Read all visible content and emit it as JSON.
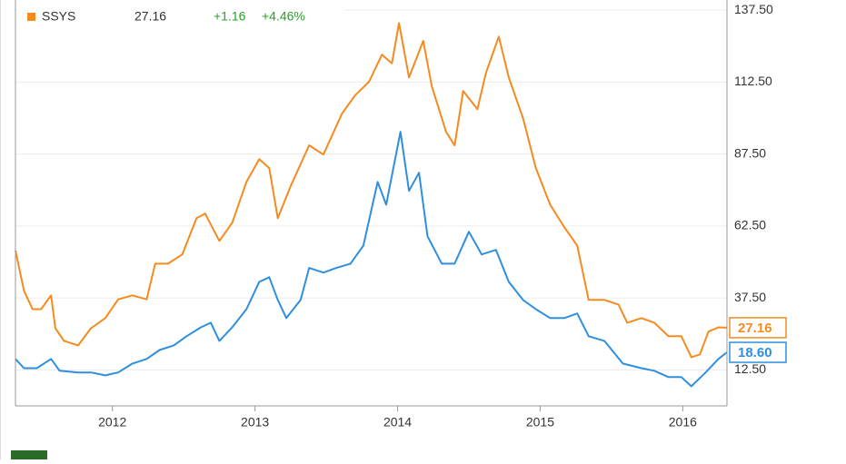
{
  "chart_data": {
    "type": "line",
    "xlim": [
      2011.32,
      2016.31
    ],
    "xticks": [
      2012,
      2013,
      2014,
      2015,
      2016
    ],
    "ylim": [
      0,
      141
    ],
    "yticks": [
      {
        "value": 12.5,
        "label": "12.50"
      },
      {
        "value": 37.5,
        "label": "37.50"
      },
      {
        "value": 62.5,
        "label": "62.50"
      },
      {
        "value": 87.5,
        "label": "87.50"
      },
      {
        "value": 112.5,
        "label": "112.50"
      },
      {
        "value": 137.5,
        "label": "137.50"
      }
    ],
    "grid": true,
    "series": [
      {
        "color": "#2f8fdf",
        "x": [
          2011.32,
          2011.38,
          2011.47,
          2011.57,
          2011.63,
          2011.76,
          2011.85,
          2011.95,
          2012.04,
          2012.14,
          2012.24,
          2012.33,
          2012.43,
          2012.52,
          2012.62,
          2012.69,
          2012.75,
          2012.84,
          2012.94,
          2013.03,
          2013.1,
          2013.16,
          2013.22,
          2013.32,
          2013.38,
          2013.48,
          2013.57,
          2013.67,
          2013.76,
          2013.86,
          2013.92,
          2014.02,
          2014.08,
          2014.15,
          2014.21,
          2014.31,
          2014.4,
          2014.5,
          2014.59,
          2014.69,
          2014.78,
          2014.88,
          2014.97,
          2015.07,
          2015.17,
          2015.26,
          2015.34,
          2015.45,
          2015.58,
          2015.71,
          2015.8,
          2015.9,
          2015.99,
          2016.06,
          2016.16,
          2016.25,
          2016.31
        ],
        "values": [
          16.3,
          13.1,
          13.1,
          16.3,
          12.2,
          11.6,
          11.6,
          10.6,
          11.6,
          14.7,
          16.3,
          19.4,
          21,
          24.2,
          27.3,
          28.9,
          22.6,
          27.3,
          33.6,
          43.1,
          44.7,
          36.8,
          30.5,
          36.8,
          47.9,
          46.3,
          47.9,
          49.4,
          55.7,
          77.8,
          69.9,
          95.2,
          74.7,
          81,
          58.9,
          49.4,
          49.4,
          60.5,
          52.6,
          54.2,
          43.1,
          36.8,
          33.6,
          30.5,
          30.5,
          32.1,
          24.2,
          22.6,
          14.7,
          13.1,
          12.2,
          10,
          10,
          6.8,
          11.6,
          16.3,
          18.6
        ],
        "value_labels": [
          null,
          null,
          null,
          null,
          null,
          null,
          null,
          null,
          null,
          null,
          null,
          null,
          null,
          null,
          null,
          null,
          null,
          null,
          null,
          null,
          null,
          null,
          null,
          null,
          null,
          null,
          null,
          null,
          null,
          null,
          null,
          null,
          null,
          null,
          null,
          null,
          null,
          null,
          null,
          null,
          null,
          null,
          null,
          null,
          null,
          null,
          null,
          null,
          null,
          null,
          null,
          null,
          null,
          null,
          null,
          null,
          "18.60"
        ]
      },
      {
        "name": "SSYS",
        "color": "#f58b1f",
        "change": "+1.16",
        "change_pct": "+4.46%",
        "x": [
          2011.32,
          2011.38,
          2011.44,
          2011.5,
          2011.57,
          2011.6,
          2011.66,
          2011.76,
          2011.85,
          2011.95,
          2012.04,
          2012.14,
          2012.24,
          2012.3,
          2012.39,
          2012.49,
          2012.59,
          2012.65,
          2012.75,
          2012.84,
          2012.94,
          2013.03,
          2013.1,
          2013.16,
          2013.25,
          2013.38,
          2013.48,
          2013.61,
          2013.7,
          2013.8,
          2013.89,
          2013.96,
          2014.01,
          2014.08,
          2014.18,
          2014.24,
          2014.34,
          2014.4,
          2014.46,
          2014.56,
          2014.62,
          2014.71,
          2014.78,
          2014.88,
          2014.97,
          2015.07,
          2015.17,
          2015.26,
          2015.34,
          2015.45,
          2015.55,
          2015.61,
          2015.71,
          2015.8,
          2015.9,
          2015.99,
          2016.06,
          2016.12,
          2016.18,
          2016.25,
          2016.31
        ],
        "values": [
          54,
          40,
          33.6,
          33.6,
          38.4,
          27,
          22.6,
          21,
          27,
          30.5,
          37,
          38.4,
          37,
          49.4,
          49.4,
          52.6,
          65.2,
          66.8,
          57.3,
          63.6,
          77.8,
          85.7,
          82.6,
          65.2,
          76.3,
          90.5,
          87.3,
          101.5,
          107.8,
          112.6,
          122,
          119,
          133,
          114.1,
          126.8,
          111,
          95.2,
          90.5,
          109.4,
          103.1,
          115.7,
          128.3,
          114.1,
          99.9,
          82.6,
          69.9,
          62,
          55.7,
          36.8,
          36.8,
          35.2,
          28.9,
          30.5,
          28.9,
          24.2,
          24.2,
          16.9,
          17.9,
          25.8,
          27.3,
          27.16
        ]
      }
    ]
  }
}
